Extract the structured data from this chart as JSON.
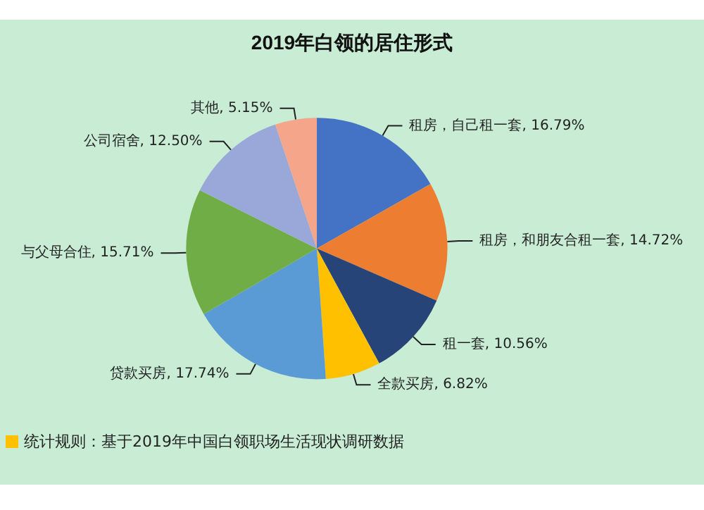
{
  "chart_data": {
    "type": "pie",
    "title": "2019年白领的居住形式",
    "categories": [
      "租房，自己租一套",
      "租房，和朋友合租一套",
      "租一套",
      "全款买房",
      "贷款买房",
      "与父母合住",
      "公司宿舍",
      "其他"
    ],
    "values": [
      16.79,
      14.72,
      10.56,
      6.82,
      17.74,
      15.71,
      12.5,
      5.15
    ],
    "value_labels": [
      "16.79%",
      "14.72%",
      "10.56%",
      "6.82%",
      "17.74%",
      "15.71%",
      "12.50%",
      "5.15%"
    ],
    "colors": [
      "#4472c4",
      "#ed7d31",
      "#264478",
      "#ffc000",
      "#5b9bd5",
      "#70ad47",
      "#99a8d8",
      "#f4a58a"
    ],
    "annotations": [
      "统计规则：基于2019年中国白领职场生活现状调研数据"
    ]
  }
}
